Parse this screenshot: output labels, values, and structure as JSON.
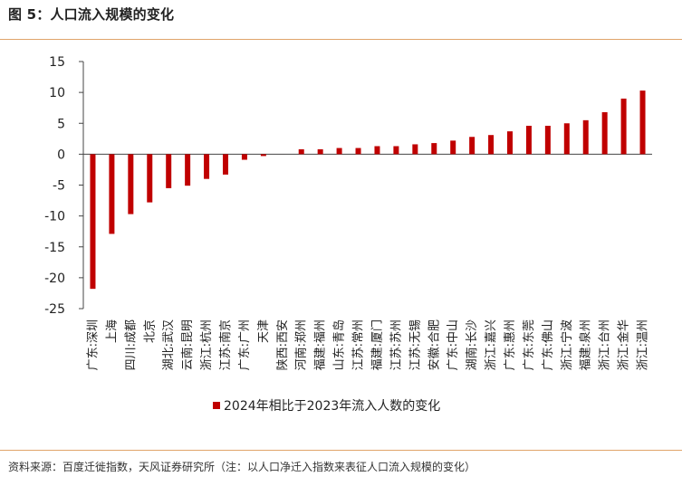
{
  "figure_title": "图 5：人口流入规模的变化",
  "source_note": "资料来源：百度迁徙指数，天风证券研究所（注：以人口净迁入指数来表征人口流入规模的变化）",
  "chart_data": {
    "type": "bar",
    "categories": [
      "广东:深圳",
      "上海",
      "四川:成都",
      "北京",
      "湖北:武汉",
      "云南:昆明",
      "浙江:杭州",
      "江苏:南京",
      "广东:广州",
      "天津",
      "陕西:西安",
      "河南:郑州",
      "福建:福州",
      "山东:青岛",
      "江苏:常州",
      "福建:厦门",
      "江苏:苏州",
      "江苏:无锡",
      "安徽:合肥",
      "广东:中山",
      "湖南:长沙",
      "浙江:嘉兴",
      "广东:惠州",
      "广东:东莞",
      "广东:佛山",
      "浙江:宁波",
      "福建:泉州",
      "浙江:台州",
      "浙江:金华",
      "浙江:温州"
    ],
    "series": [
      {
        "name": "2024年相比于2023年流入人数的变化",
        "color": "#c00000",
        "values": [
          -21.8,
          -12.9,
          -9.7,
          -7.8,
          -5.5,
          -5.1,
          -4.0,
          -3.3,
          -0.9,
          -0.3,
          0.0,
          0.8,
          0.8,
          1.0,
          1.0,
          1.3,
          1.3,
          1.6,
          1.8,
          2.2,
          2.8,
          3.1,
          3.7,
          4.6,
          4.6,
          5.0,
          5.5,
          6.8,
          9.0,
          10.3
        ]
      }
    ],
    "yticks": [
      15,
      10,
      5,
      0,
      -5,
      -10,
      -15,
      -20,
      -25
    ],
    "ylim": [
      -25,
      15
    ],
    "grid": false,
    "legend_position": "bottom"
  }
}
